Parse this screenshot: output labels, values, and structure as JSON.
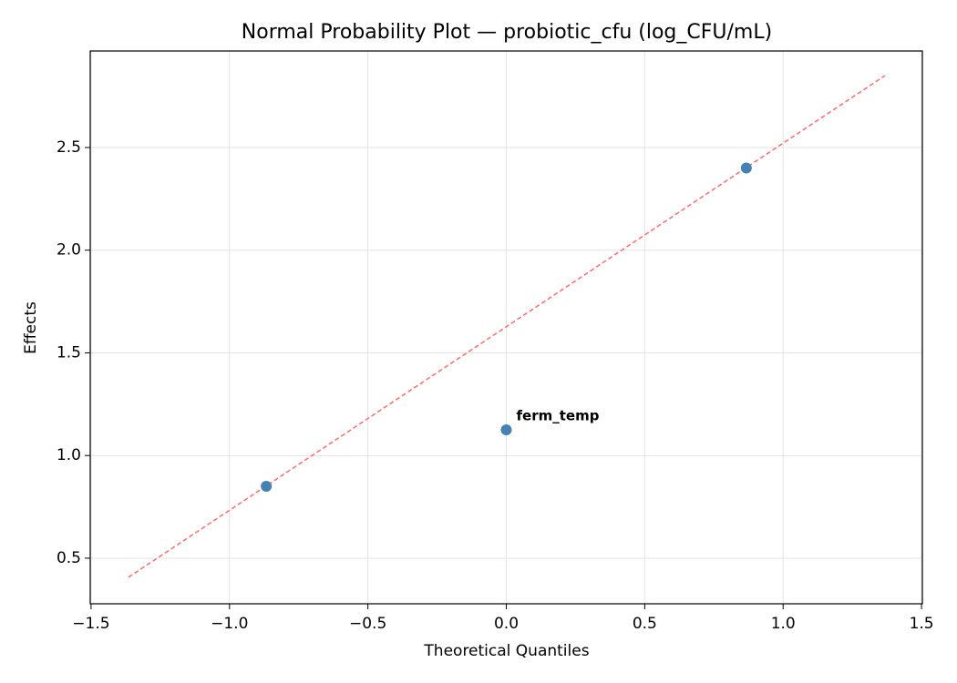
{
  "chart_data": {
    "type": "scatter",
    "title": "Normal Probability Plot — probiotic_cfu (log_CFU/mL)",
    "x_label": "Theoretical Quantiles",
    "y_label": "Effects",
    "x": [
      -0.867,
      0,
      0.867
    ],
    "values": [
      0.85,
      1.125,
      2.4
    ],
    "color": "#4682b4",
    "reference_line": {
      "x": [
        -1.365,
        1.368
      ],
      "y": [
        0.407,
        2.85
      ],
      "color": "#ff6b6b",
      "dashed": true
    },
    "annotations": [
      {
        "text": "ferm_temp",
        "x": 0,
        "y": 1.125,
        "color": "#ff0000"
      }
    ],
    "xlim": [
      -1.503,
      1.503
    ],
    "ylim": [
      0.278,
      2.97
    ],
    "xticks": [
      {
        "value": -1.5,
        "label": "−1.5"
      },
      {
        "value": -1,
        "label": "−1.0"
      },
      {
        "value": -0.5,
        "label": "−0.5"
      },
      {
        "value": 0,
        "label": "0.0"
      },
      0.5,
      {
        "value": 1,
        "label": "1.0"
      },
      1.5
    ],
    "yticks": [
      0.5,
      {
        "value": 1,
        "label": "1.0"
      },
      1.5,
      {
        "value": 2,
        "label": "2.0"
      },
      2.5
    ],
    "grid": true
  }
}
